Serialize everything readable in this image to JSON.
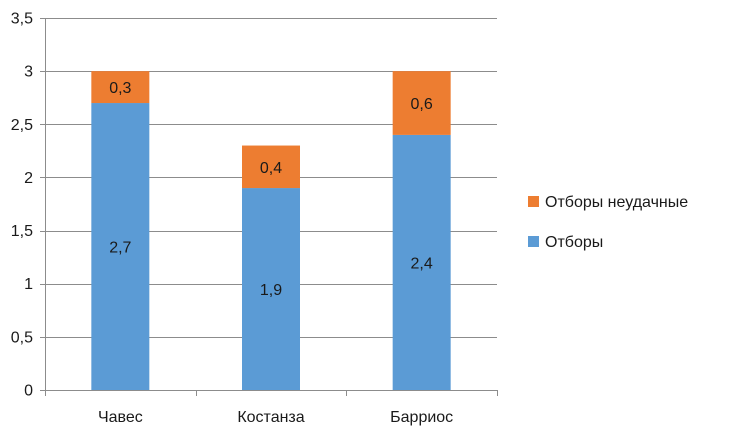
{
  "chart_data": {
    "type": "bar",
    "stacked": true,
    "categories": [
      "Чавес",
      "Костанза",
      "Барриос"
    ],
    "series": [
      {
        "name": "Отборы",
        "values": [
          2.7,
          1.9,
          2.4
        ],
        "color": "#5b9bd5"
      },
      {
        "name": "Отборы неудачные",
        "values": [
          0.3,
          0.4,
          0.6
        ],
        "color": "#ed7d31"
      }
    ],
    "ylim": [
      0,
      3.5
    ],
    "yticks": [
      0,
      0.5,
      1,
      1.5,
      2,
      2.5,
      3,
      3.5
    ],
    "grid": true,
    "legend_position": "right",
    "decimal_separator": ","
  }
}
